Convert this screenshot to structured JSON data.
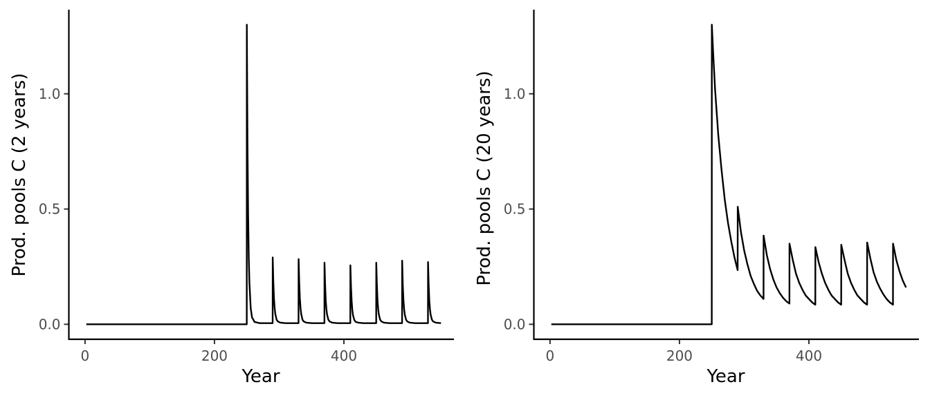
{
  "chart_data": [
    {
      "type": "line",
      "title": "",
      "xlabel": "Year",
      "ylabel": "Prod. pools C (2 years)",
      "xlim": [
        -25,
        570
      ],
      "ylim": [
        -0.065,
        1.365
      ],
      "xticks": [
        0,
        200,
        400
      ],
      "xtick_labels": [
        "0",
        "200",
        "400"
      ],
      "yticks": [
        0.0,
        0.5,
        1.0
      ],
      "ytick_labels": [
        "0.0",
        "0.5",
        "1.0"
      ],
      "grid": false,
      "legend": "none",
      "line_color": "#000000",
      "series": [
        {
          "x": [
            2,
            249.9,
            250,
            251,
            252,
            253,
            254,
            256,
            258,
            262,
            270,
            280,
            289.9,
            290,
            291,
            292,
            293,
            294,
            296,
            298,
            302,
            310,
            320,
            329.9,
            330,
            331,
            332,
            333,
            334,
            336,
            338,
            342,
            350,
            360,
            369.9,
            370,
            371,
            372,
            373,
            374,
            376,
            378,
            382,
            390,
            400,
            409.9,
            410,
            411,
            412,
            413,
            414,
            416,
            418,
            422,
            430,
            440,
            449.9,
            450,
            451,
            452,
            453,
            454,
            456,
            458,
            462,
            470,
            480,
            489.9,
            490,
            491,
            492,
            493,
            494,
            496,
            498,
            502,
            510,
            520,
            529.9,
            530,
            531,
            532,
            533,
            534,
            536,
            538,
            542,
            550
          ],
          "y": [
            0.0,
            0.0,
            1.3,
            0.79,
            0.48,
            0.29,
            0.18,
            0.07,
            0.03,
            0.01,
            0.005,
            0.005,
            0.005,
            0.29,
            0.18,
            0.11,
            0.07,
            0.045,
            0.02,
            0.012,
            0.007,
            0.005,
            0.005,
            0.005,
            0.283,
            0.18,
            0.11,
            0.07,
            0.045,
            0.02,
            0.012,
            0.007,
            0.005,
            0.005,
            0.005,
            0.267,
            0.17,
            0.1,
            0.065,
            0.042,
            0.02,
            0.012,
            0.007,
            0.005,
            0.005,
            0.005,
            0.256,
            0.16,
            0.1,
            0.062,
            0.04,
            0.019,
            0.011,
            0.007,
            0.005,
            0.005,
            0.005,
            0.267,
            0.17,
            0.1,
            0.065,
            0.042,
            0.02,
            0.012,
            0.007,
            0.005,
            0.005,
            0.005,
            0.276,
            0.17,
            0.105,
            0.067,
            0.043,
            0.02,
            0.012,
            0.007,
            0.005,
            0.005,
            0.005,
            0.27,
            0.17,
            0.1,
            0.065,
            0.042,
            0.02,
            0.012,
            0.007,
            0.005
          ]
        }
      ]
    },
    {
      "type": "line",
      "title": "",
      "xlabel": "Year",
      "ylabel": "Prod. pools C (20 years)",
      "xlim": [
        -25,
        570
      ],
      "ylim": [
        -0.065,
        1.365
      ],
      "xticks": [
        0,
        200,
        400
      ],
      "xtick_labels": [
        "0",
        "200",
        "400"
      ],
      "yticks": [
        0.0,
        0.5,
        1.0
      ],
      "ytick_labels": [
        "0.0",
        "0.5",
        "1.0"
      ],
      "grid": false,
      "legend": "none",
      "line_color": "#000000",
      "series": [
        {
          "x": [
            2,
            249.9,
            250,
            252,
            255,
            260,
            265,
            270,
            275,
            280,
            285,
            289.9,
            290,
            295,
            300,
            305,
            310,
            315,
            320,
            325,
            329.9,
            330,
            335,
            340,
            345,
            350,
            355,
            360,
            365,
            369.9,
            370,
            375,
            380,
            385,
            390,
            395,
            400,
            405,
            409.9,
            410,
            415,
            420,
            425,
            430,
            435,
            440,
            445,
            449.9,
            450,
            455,
            460,
            465,
            470,
            475,
            480,
            485,
            489.9,
            490,
            495,
            500,
            505,
            510,
            515,
            520,
            525,
            529.9,
            530,
            535,
            540,
            545,
            550
          ],
          "y": [
            0.0,
            0.0,
            1.3,
            1.18,
            1.02,
            0.82,
            0.67,
            0.54,
            0.44,
            0.36,
            0.29,
            0.235,
            0.51,
            0.4,
            0.32,
            0.26,
            0.21,
            0.175,
            0.145,
            0.125,
            0.11,
            0.385,
            0.3,
            0.24,
            0.195,
            0.16,
            0.135,
            0.115,
            0.1,
            0.09,
            0.35,
            0.28,
            0.22,
            0.18,
            0.15,
            0.125,
            0.11,
            0.095,
            0.085,
            0.335,
            0.27,
            0.22,
            0.18,
            0.15,
            0.125,
            0.11,
            0.095,
            0.085,
            0.345,
            0.28,
            0.22,
            0.18,
            0.15,
            0.125,
            0.11,
            0.095,
            0.085,
            0.355,
            0.285,
            0.225,
            0.185,
            0.155,
            0.13,
            0.11,
            0.095,
            0.085,
            0.35,
            0.28,
            0.23,
            0.19,
            0.16
          ]
        }
      ]
    }
  ]
}
